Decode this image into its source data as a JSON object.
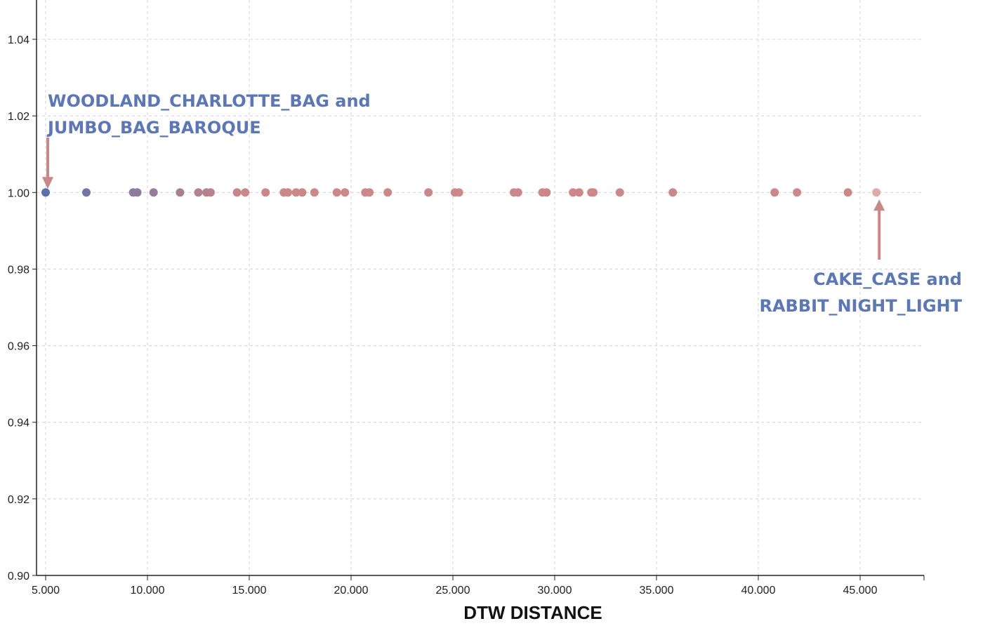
{
  "chart_data": {
    "type": "scatter",
    "xlabel": "DTW DISTANCE",
    "ylabel": "",
    "xlim": [
      4900,
      48000
    ],
    "ylim": [
      0.9,
      1.05
    ],
    "x_ticks": [
      5000,
      10000,
      15000,
      20000,
      25000,
      30000,
      35000,
      40000,
      45000
    ],
    "x_tick_labels": [
      "5.000",
      "10.000",
      "15.000",
      "20.000",
      "25.000",
      "30.000",
      "35.000",
      "40.000",
      "45.000"
    ],
    "y_ticks": [
      0.9,
      0.92,
      0.94,
      0.96,
      0.98,
      1.0,
      1.02,
      1.04
    ],
    "y_tick_labels": [
      "0.90",
      "0.92",
      "0.94",
      "0.96",
      "0.98",
      "1.00",
      "1.02",
      "1.04"
    ],
    "grid": true,
    "points": [
      {
        "x": 5000,
        "y": 1.0
      },
      {
        "x": 7000,
        "y": 1.0
      },
      {
        "x": 9300,
        "y": 1.0
      },
      {
        "x": 9500,
        "y": 1.0
      },
      {
        "x": 10300,
        "y": 1.0
      },
      {
        "x": 11600,
        "y": 1.0
      },
      {
        "x": 12500,
        "y": 1.0
      },
      {
        "x": 12900,
        "y": 1.0
      },
      {
        "x": 13100,
        "y": 1.0
      },
      {
        "x": 14400,
        "y": 1.0
      },
      {
        "x": 14800,
        "y": 1.0
      },
      {
        "x": 15800,
        "y": 1.0
      },
      {
        "x": 16700,
        "y": 1.0
      },
      {
        "x": 16900,
        "y": 1.0
      },
      {
        "x": 17300,
        "y": 1.0
      },
      {
        "x": 17600,
        "y": 1.0
      },
      {
        "x": 18200,
        "y": 1.0
      },
      {
        "x": 19300,
        "y": 1.0
      },
      {
        "x": 19700,
        "y": 1.0
      },
      {
        "x": 20700,
        "y": 1.0
      },
      {
        "x": 20900,
        "y": 1.0
      },
      {
        "x": 21800,
        "y": 1.0
      },
      {
        "x": 23800,
        "y": 1.0
      },
      {
        "x": 25100,
        "y": 1.0
      },
      {
        "x": 25300,
        "y": 1.0
      },
      {
        "x": 28000,
        "y": 1.0
      },
      {
        "x": 28200,
        "y": 1.0
      },
      {
        "x": 29400,
        "y": 1.0
      },
      {
        "x": 29600,
        "y": 1.0
      },
      {
        "x": 30900,
        "y": 1.0
      },
      {
        "x": 31200,
        "y": 1.0
      },
      {
        "x": 31800,
        "y": 1.0
      },
      {
        "x": 31900,
        "y": 1.0
      },
      {
        "x": 33200,
        "y": 1.0
      },
      {
        "x": 35800,
        "y": 1.0
      },
      {
        "x": 40800,
        "y": 1.0
      },
      {
        "x": 41900,
        "y": 1.0
      },
      {
        "x": 44400,
        "y": 1.0
      },
      {
        "x": 45800,
        "y": 1.0
      }
    ],
    "color_gradient": {
      "low": "#5b6fb0",
      "high": "#cc8888",
      "last": "#e0aaaa"
    },
    "annotations": [
      {
        "lines": [
          "WOODLAND_CHARLOTTE_BAG and",
          "JUMBO_BAG_BAROQUE"
        ],
        "target_x": 5000,
        "target_y": 1.0,
        "color": "#5b77b8",
        "arrow_color": "#c88888",
        "placement": "above-left"
      },
      {
        "lines": [
          "CAKE_CASE and",
          "RABBIT_NIGHT_LIGHT"
        ],
        "target_x": 45800,
        "target_y": 1.0,
        "color": "#5b77b8",
        "arrow_color": "#c88888",
        "placement": "below-right"
      }
    ]
  }
}
